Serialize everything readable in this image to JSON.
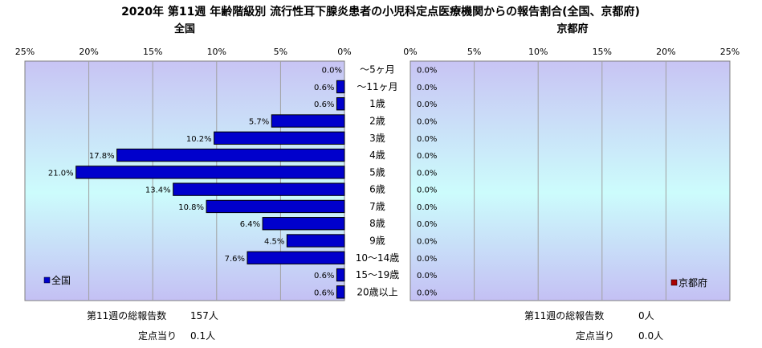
{
  "title": "2020年 第11週 年齢階級別 流行性耳下腺炎患者の小児科定点医療機関からの報告割合(全国、京都府)",
  "chart_data": {
    "type": "bar",
    "orientation": "horizontal",
    "title": "2020年 第11週 年齢階級別 流行性耳下腺炎患者の小児科定点医療機関からの報告割合(全国、京都府)",
    "categories": [
      "～5ヶ月",
      "～11ヶ月",
      "1歳",
      "2歳",
      "3歳",
      "4歳",
      "5歳",
      "6歳",
      "7歳",
      "8歳",
      "9歳",
      "10～14歳",
      "15～19歳",
      "20歳以上"
    ],
    "xlim": [
      0,
      25
    ],
    "x_ticks": [
      "25%",
      "20%",
      "15%",
      "10%",
      "5%",
      "0%"
    ],
    "x_ticks_right": [
      "0%",
      "5%",
      "10%",
      "15%",
      "20%",
      "25%"
    ],
    "grid": true,
    "series": [
      {
        "name": "全国",
        "panel_title": "全国",
        "color": "#0000cc",
        "values": [
          0.0,
          0.6,
          0.6,
          5.7,
          10.2,
          17.8,
          21.0,
          13.4,
          10.8,
          6.4,
          4.5,
          7.6,
          0.6,
          0.6
        ],
        "labels": [
          "0.0%",
          "0.6%",
          "0.6%",
          "5.7%",
          "10.2%",
          "17.8%",
          "21.0%",
          "13.4%",
          "10.8%",
          "6.4%",
          "4.5%",
          "7.6%",
          "0.6%",
          "0.6%"
        ],
        "legend_position": "bottom-left"
      },
      {
        "name": "京都府",
        "panel_title": "京都府",
        "color": "#aa0000",
        "values": [
          0,
          0,
          0,
          0,
          0,
          0,
          0,
          0,
          0,
          0,
          0,
          0,
          0,
          0
        ],
        "labels": [
          "0.0%",
          "0.0%",
          "0.0%",
          "0.0%",
          "0.0%",
          "0.0%",
          "0.0%",
          "0.0%",
          "0.0%",
          "0.0%",
          "0.0%",
          "0.0%",
          "0.0%",
          "0.0%"
        ],
        "legend_position": "bottom-right"
      }
    ]
  },
  "summary": {
    "national": {
      "total_label": "第11週の総報告数",
      "total_value": "157人",
      "per_label": "定点当り",
      "per_value": "0.1人"
    },
    "kyoto": {
      "total_label": "第11週の総報告数",
      "total_value": "0人",
      "per_label": "定点当り",
      "per_value": "0.0人"
    }
  }
}
